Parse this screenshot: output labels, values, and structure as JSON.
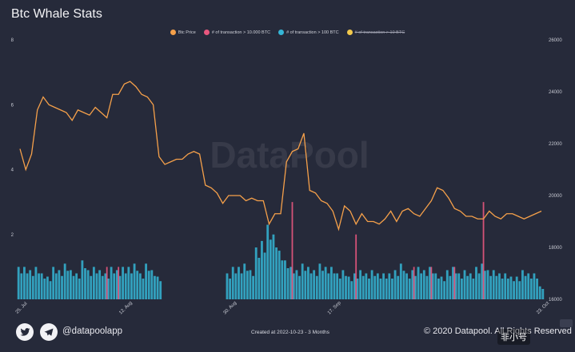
{
  "title": "Btc Whale Stats",
  "legend": [
    {
      "label": "Btc Price",
      "color": "#f5a04a",
      "hidden": false
    },
    {
      "label": "# of transaction > 10.000 BTC",
      "color": "#e8577e",
      "hidden": false
    },
    {
      "label": "# of transaction > 100 BTC",
      "color": "#35b6d6",
      "hidden": false
    },
    {
      "label": "# of transaction > 10 BTC",
      "color": "#f2c94c",
      "hidden": true
    }
  ],
  "watermark_text": "DataPool",
  "footer": {
    "twitter_icon": "twitter-icon",
    "telegram_icon": "telegram-icon",
    "handle": "@datapoolapp",
    "created": "Created at 2022-10-23 - 3 Months",
    "copyright": "© 2020 Datapool. All Rights Reserved",
    "overlay_badge": "非小号"
  },
  "chart_data": {
    "type": "bar",
    "title": "Btc Whale Stats",
    "x_range": [
      "2022-07-25",
      "2022-10-23"
    ],
    "x_ticks": [
      {
        "label": "25. Jul",
        "date": "2022-07-25"
      },
      {
        "label": "12. Aug",
        "date": "2022-08-12"
      },
      {
        "label": "30. Aug",
        "date": "2022-08-30"
      },
      {
        "label": "17. Sep",
        "date": "2022-09-17"
      },
      {
        "label": "23. Oct",
        "date": "2022-10-23"
      }
    ],
    "y_left": {
      "min": 0,
      "max": 8,
      "ticks": [
        2,
        4,
        6,
        8
      ]
    },
    "y_right": {
      "min": 16000,
      "max": 26000,
      "ticks": [
        16000,
        18000,
        20000,
        22000,
        24000,
        26000
      ]
    },
    "series": [
      {
        "name": "Btc Price",
        "type": "line",
        "axis": "right",
        "color": "#f5a04a",
        "x": [
          "2022-07-25",
          "2022-07-26",
          "2022-07-27",
          "2022-07-28",
          "2022-07-29",
          "2022-07-30",
          "2022-07-31",
          "2022-08-01",
          "2022-08-02",
          "2022-08-03",
          "2022-08-04",
          "2022-08-05",
          "2022-08-06",
          "2022-08-07",
          "2022-08-08",
          "2022-08-09",
          "2022-08-10",
          "2022-08-11",
          "2022-08-12",
          "2022-08-13",
          "2022-08-14",
          "2022-08-15",
          "2022-08-16",
          "2022-08-17",
          "2022-08-18",
          "2022-08-19",
          "2022-08-20",
          "2022-08-21",
          "2022-08-22",
          "2022-08-23",
          "2022-08-24",
          "2022-08-25",
          "2022-08-26",
          "2022-08-27",
          "2022-08-28",
          "2022-08-29",
          "2022-08-30",
          "2022-08-31",
          "2022-09-01",
          "2022-09-02",
          "2022-09-03",
          "2022-09-04",
          "2022-09-05",
          "2022-09-06",
          "2022-09-07",
          "2022-09-08",
          "2022-09-09",
          "2022-09-10",
          "2022-09-11",
          "2022-09-12",
          "2022-09-13",
          "2022-09-14",
          "2022-09-15",
          "2022-09-16",
          "2022-09-17",
          "2022-09-18",
          "2022-09-19",
          "2022-09-20",
          "2022-09-21",
          "2022-09-22",
          "2022-09-23",
          "2022-09-24",
          "2022-09-25",
          "2022-09-26",
          "2022-09-27",
          "2022-09-28",
          "2022-09-29",
          "2022-09-30",
          "2022-10-01",
          "2022-10-02",
          "2022-10-03",
          "2022-10-04",
          "2022-10-05",
          "2022-10-06",
          "2022-10-07",
          "2022-10-08",
          "2022-10-09",
          "2022-10-10",
          "2022-10-11",
          "2022-10-12",
          "2022-10-13",
          "2022-10-14",
          "2022-10-15",
          "2022-10-16",
          "2022-10-17",
          "2022-10-18",
          "2022-10-19",
          "2022-10-20",
          "2022-10-21",
          "2022-10-22",
          "2022-10-23"
        ],
        "values": [
          21800,
          21000,
          21600,
          23300,
          23800,
          23500,
          23400,
          23300,
          23200,
          22900,
          23300,
          23200,
          23100,
          23400,
          23200,
          23000,
          23900,
          23900,
          24300,
          24400,
          24200,
          23900,
          23800,
          23500,
          21500,
          21200,
          21300,
          21400,
          21400,
          21600,
          21700,
          21600,
          20400,
          20300,
          20100,
          19700,
          20000,
          20000,
          20000,
          19800,
          19900,
          19800,
          19800,
          18900,
          19300,
          19300,
          21300,
          21700,
          21800,
          22400,
          20200,
          20100,
          19800,
          19700,
          19400,
          18700,
          19600,
          19400,
          18900,
          19300,
          19000,
          19000,
          18900,
          19100,
          19400,
          19000,
          19400,
          19500,
          19300,
          19200,
          19500,
          19800,
          20300,
          20200,
          19900,
          19500,
          19400,
          19200,
          19200,
          19100,
          19100,
          19400,
          19200,
          19100,
          19300,
          19300,
          19200,
          19100,
          19200,
          19300,
          19400
        ]
      },
      {
        "name": "# of transaction > 10.000 BTC",
        "type": "column",
        "axis": "left",
        "color": "#e8577e",
        "x": [
          "2022-08-09",
          "2022-08-11",
          "2022-09-10",
          "2022-09-21",
          "2022-10-01",
          "2022-10-04",
          "2022-10-08",
          "2022-10-13"
        ],
        "values": [
          1,
          1,
          3,
          2,
          1,
          1,
          1,
          3
        ]
      },
      {
        "name": "# of transaction > 100 BTC",
        "type": "column",
        "axis": "left",
        "color": "#35b6d6",
        "x": [
          "2022-07-25",
          "2022-07-26",
          "2022-07-27",
          "2022-07-28",
          "2022-07-29",
          "2022-07-30",
          "2022-07-31",
          "2022-08-01",
          "2022-08-02",
          "2022-08-03",
          "2022-08-04",
          "2022-08-05",
          "2022-08-06",
          "2022-08-07",
          "2022-08-08",
          "2022-08-09",
          "2022-08-10",
          "2022-08-11",
          "2022-08-12",
          "2022-08-13",
          "2022-08-14",
          "2022-08-15",
          "2022-08-16",
          "2022-08-17",
          "2022-08-18",
          "2022-08-19",
          "2022-08-20",
          "2022-08-21",
          "2022-08-22",
          "2022-08-23",
          "2022-08-24",
          "2022-08-25",
          "2022-08-26",
          "2022-08-27",
          "2022-08-28",
          "2022-08-29",
          "2022-08-30",
          "2022-08-31",
          "2022-09-01",
          "2022-09-02",
          "2022-09-03",
          "2022-09-04",
          "2022-09-05",
          "2022-09-06",
          "2022-09-07",
          "2022-09-08",
          "2022-09-09",
          "2022-09-10",
          "2022-09-11",
          "2022-09-12",
          "2022-09-13",
          "2022-09-14",
          "2022-09-15",
          "2022-09-16",
          "2022-09-17",
          "2022-09-18",
          "2022-09-19",
          "2022-09-20",
          "2022-09-21",
          "2022-09-22",
          "2022-09-23",
          "2022-09-24",
          "2022-09-25",
          "2022-09-26",
          "2022-09-27",
          "2022-09-28",
          "2022-09-29",
          "2022-09-30",
          "2022-10-01",
          "2022-10-02",
          "2022-10-03",
          "2022-10-04",
          "2022-10-05",
          "2022-10-06",
          "2022-10-07",
          "2022-10-08",
          "2022-10-09",
          "2022-10-10",
          "2022-10-11",
          "2022-10-12",
          "2022-10-13",
          "2022-10-14",
          "2022-10-15",
          "2022-10-16",
          "2022-10-17",
          "2022-10-18",
          "2022-10-19",
          "2022-10-20",
          "2022-10-21",
          "2022-10-22",
          "2022-10-23"
        ],
        "values": [
          1.0,
          1.0,
          0.9,
          1.0,
          0.8,
          0.7,
          1.0,
          0.9,
          1.1,
          0.9,
          0.8,
          1.2,
          0.9,
          1.0,
          0.9,
          0.8,
          1.0,
          0.9,
          1.0,
          1.0,
          1.1,
          0.8,
          1.1,
          0.9,
          0.7,
          0,
          0,
          0,
          0,
          0,
          0,
          0,
          0,
          0,
          0,
          0,
          0.8,
          1.0,
          1.0,
          1.1,
          0.9,
          1.6,
          1.8,
          2.3,
          2.0,
          1.5,
          1.2,
          1.0,
          0.9,
          1.1,
          1.0,
          0.9,
          1.1,
          1.0,
          1.0,
          0.8,
          0.9,
          0.7,
          0.8,
          0.9,
          0.8,
          0.9,
          0.8,
          0.8,
          0.8,
          0.9,
          1.1,
          0.8,
          0.9,
          1.0,
          0.9,
          1.0,
          0.8,
          0.7,
          0.9,
          1.0,
          0.8,
          0.9,
          0.8,
          1.0,
          1.1,
          0.9,
          0.9,
          0.8,
          0.8,
          0.7,
          0.7,
          0.9,
          0.8,
          0.8,
          0.4
        ]
      },
      {
        "name": "# of transaction > 10 BTC",
        "type": "column",
        "axis": "left",
        "color": "#f2c94c",
        "hidden": true,
        "x": [],
        "values": []
      }
    ],
    "grid": false,
    "legend_position": "top-center"
  }
}
